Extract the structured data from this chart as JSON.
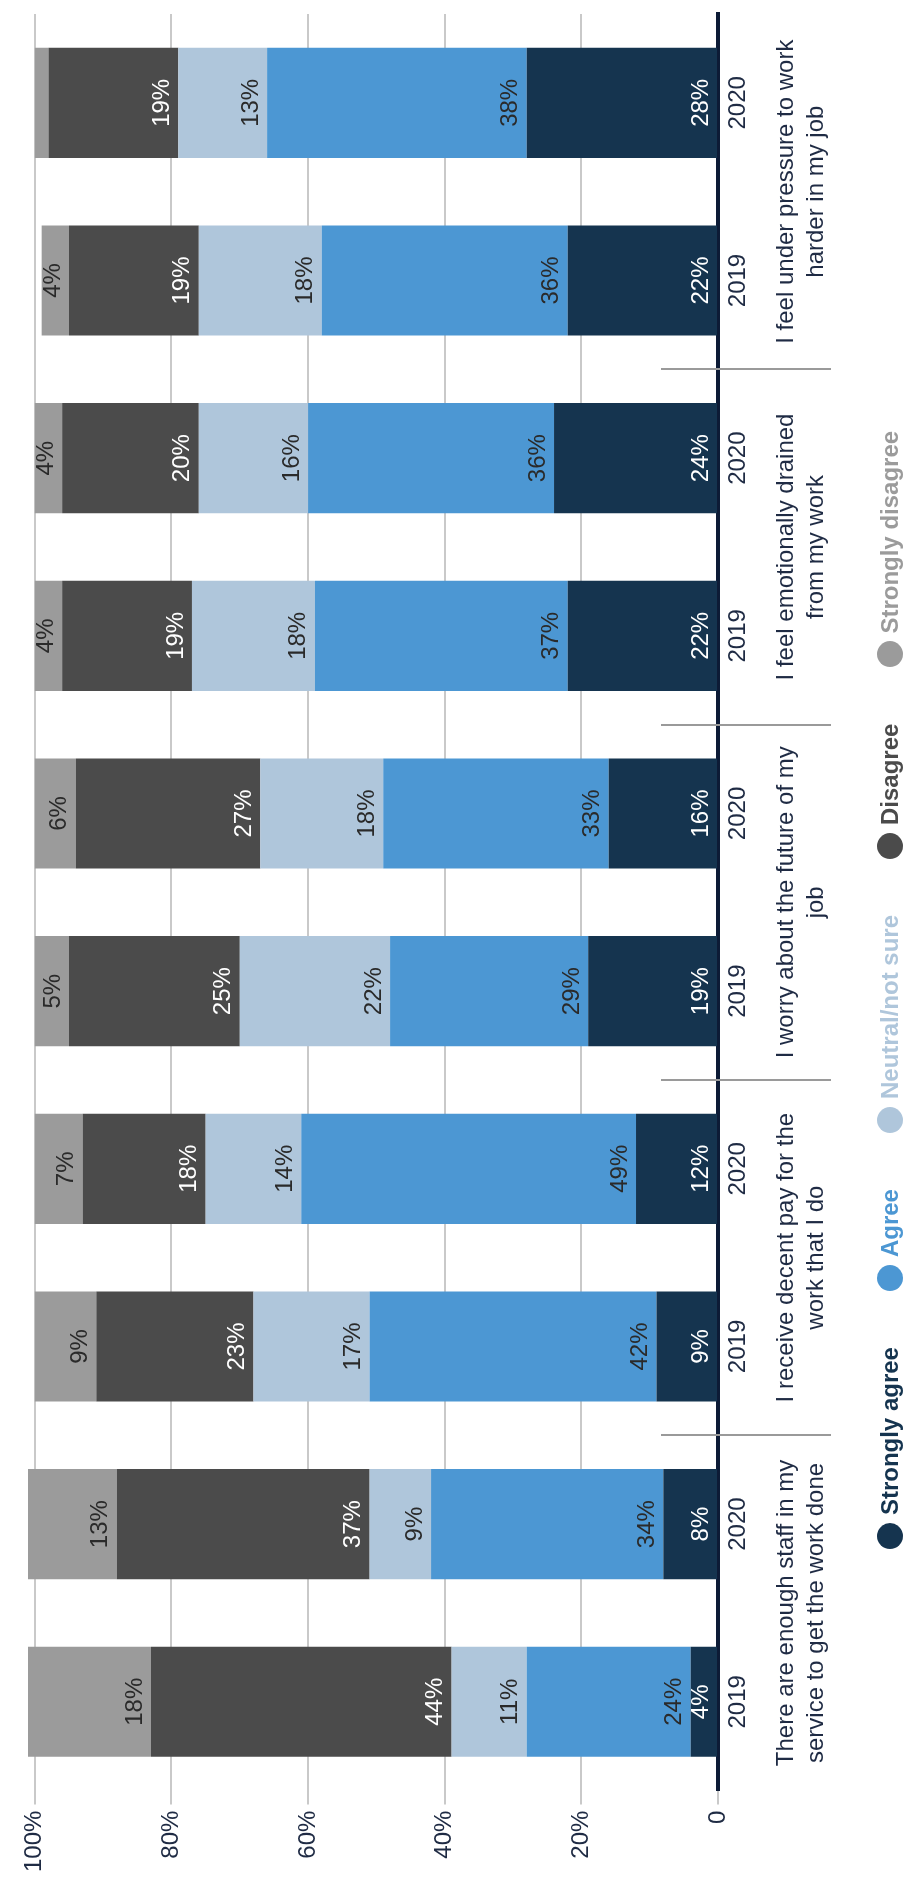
{
  "chart_data": {
    "type": "bar",
    "orientation": "horizontal",
    "stacked": true,
    "categories": [
      "2020",
      "2019",
      "2020",
      "2019",
      "2020",
      "2019",
      "2020",
      "2019",
      "2020",
      "2019"
    ],
    "series": [
      {
        "name": "Strongly agree",
        "color": "#15344f",
        "values": [
          28,
          22,
          24,
          22,
          16,
          19,
          12,
          9,
          8,
          4
        ],
        "value_labels": [
          "28%",
          "22%",
          "24%",
          "22%",
          "16%",
          "19%",
          "12%",
          "9%",
          "8%",
          "4%"
        ]
      },
      {
        "name": "Agree",
        "color": "#4c97d3",
        "values": [
          38,
          36,
          36,
          37,
          33,
          29,
          49,
          42,
          34,
          24
        ],
        "value_labels": [
          "38%",
          "36%",
          "36%",
          "37%",
          "33%",
          "29%",
          "49%",
          "42%",
          "34%",
          "24%"
        ]
      },
      {
        "name": "Neutral/not sure",
        "color": "#afc6db",
        "values": [
          13,
          18,
          16,
          18,
          18,
          22,
          14,
          17,
          9,
          11
        ],
        "value_labels": [
          "13%",
          "18%",
          "16%",
          "18%",
          "18%",
          "22%",
          "14%",
          "17%",
          "9%",
          "11%"
        ]
      },
      {
        "name": "Disagree",
        "color": "#4b4b4b",
        "values": [
          19,
          19,
          20,
          19,
          27,
          25,
          18,
          23,
          37,
          44
        ],
        "value_labels": [
          "19%",
          "19%",
          "20%",
          "19%",
          "27%",
          "25%",
          "18%",
          "23%",
          "37%",
          "44%"
        ]
      },
      {
        "name": "Strongly disagree",
        "color": "#9b9b9b",
        "values": [
          2,
          4,
          4,
          4,
          6,
          5,
          7,
          9,
          13,
          18
        ],
        "value_labels": [
          null,
          "4%",
          "4%",
          "4%",
          "6%",
          "5%",
          "7%",
          "9%",
          "13%",
          "18%"
        ]
      }
    ],
    "xlim": [
      101,
      0
    ],
    "xticks": [
      0,
      {
        "value": 20,
        "label": "20%"
      },
      {
        "value": 40,
        "label": "40%"
      },
      {
        "value": 60,
        "label": "60%"
      },
      {
        "value": 80,
        "label": "80%"
      },
      {
        "value": 100,
        "label": "100%"
      }
    ],
    "annotations": [
      "I feel under pressure to work harder in my job",
      "I feel emotionally drained from my work",
      "I worry about the future of my job",
      "I receive decent pay for the work that I do",
      "There are enough staff in my service to get the work done"
    ],
    "grid": "x",
    "legend": "right"
  }
}
